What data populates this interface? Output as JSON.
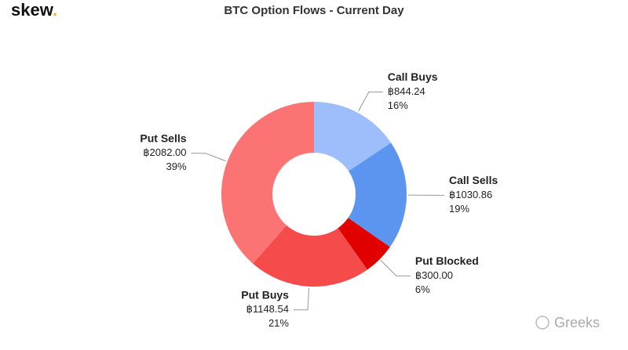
{
  "logo": "skew",
  "logo_dot": ".",
  "watermark": "Greeks",
  "chart_data": {
    "type": "pie",
    "donut": true,
    "title": "BTC Option Flows - Current Day",
    "categories": [
      "Call Buys",
      "Call Sells",
      "Put Blocked",
      "Put Buys",
      "Put Sells"
    ],
    "values": [
      844.24,
      1030.86,
      300.0,
      1148.54,
      2082.0
    ],
    "value_labels": [
      "฿844.24",
      "฿1030.86",
      "฿300.00",
      "฿1148.54",
      "฿2082.00"
    ],
    "percent_labels": [
      "16%",
      "19%",
      "6%",
      "21%",
      "39%"
    ],
    "colors": [
      "#9dbefa",
      "#5b95f0",
      "#e00000",
      "#f54b4b",
      "#fb7373"
    ]
  }
}
